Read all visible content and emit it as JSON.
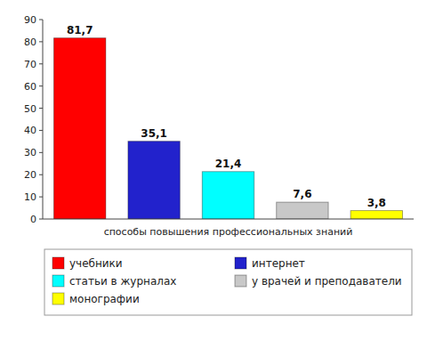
{
  "chart_data": {
    "type": "bar",
    "xlabel": "способы повышения профессиональных знаний",
    "categories": [
      "учебники",
      "интернет",
      "статьи в журналах",
      "у врачей и преподаватели",
      "монографии"
    ],
    "values": [
      81.7,
      35.1,
      21.4,
      7.6,
      3.8
    ],
    "value_labels": [
      "81,7",
      "35,1",
      "21,4",
      "7,6",
      "3,8"
    ],
    "colors": [
      "#ff0000",
      "#2222cc",
      "#00ffff",
      "#c8c8c8",
      "#ffff00"
    ],
    "ylim": [
      0,
      90
    ],
    "yticks": [
      0,
      10,
      20,
      30,
      40,
      50,
      60,
      70,
      80,
      90
    ],
    "data_labels": true,
    "tick_labels": "y",
    "legend": "bottom",
    "grid": false
  }
}
